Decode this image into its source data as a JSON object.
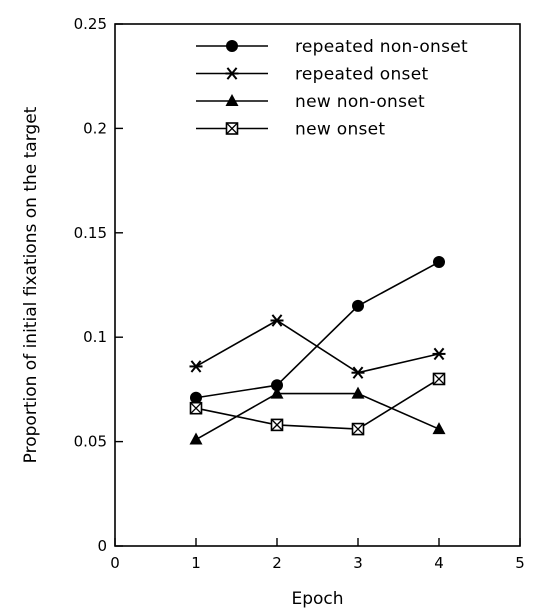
{
  "chart_data": {
    "type": "line",
    "title": "",
    "xlabel": "Epoch",
    "ylabel": "Proportion of initial fixations on the target",
    "xlim": [
      0,
      5
    ],
    "ylim": [
      0,
      0.25
    ],
    "x_ticks": [
      "0",
      "1",
      "2",
      "3",
      "4",
      "5"
    ],
    "y_ticks": [
      "0",
      "0.05",
      "0.1",
      "0.15",
      "0.2",
      "0.25"
    ],
    "x": [
      1,
      2,
      3,
      4
    ],
    "grid": false,
    "legend_position": "top-right",
    "series": [
      {
        "name": "repeated non-onset",
        "marker": "filled-circle",
        "values": [
          0.071,
          0.077,
          0.115,
          0.136
        ]
      },
      {
        "name": "repeated onset",
        "marker": "asterisk",
        "values": [
          0.086,
          0.108,
          0.083,
          0.092
        ]
      },
      {
        "name": "new non-onset",
        "marker": "filled-triangle",
        "values": [
          0.051,
          0.073,
          0.073,
          0.056
        ]
      },
      {
        "name": "new onset",
        "marker": "crossed-square",
        "values": [
          0.066,
          0.058,
          0.056,
          0.08
        ]
      }
    ]
  }
}
